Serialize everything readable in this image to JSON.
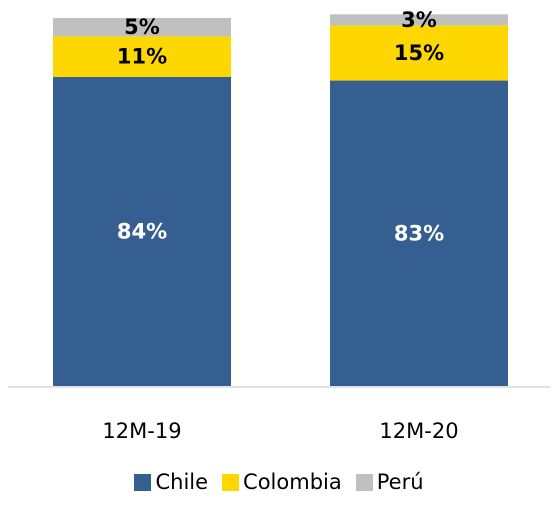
{
  "chart_data": {
    "type": "bar",
    "stacked": true,
    "categories": [
      "12M-19",
      "12M-20"
    ],
    "series": [
      {
        "name": "Chile",
        "color": "#365f91",
        "values": [
          84,
          83
        ],
        "labels": [
          "84%",
          "83%"
        ],
        "label_color": "#ffffff"
      },
      {
        "name": "Colombia",
        "color": "#ffd700",
        "values": [
          11,
          15
        ],
        "labels": [
          "11%",
          "15%"
        ],
        "label_color": "#000000"
      },
      {
        "name": "Perú",
        "color": "#c0c0c0",
        "values": [
          5,
          3
        ],
        "labels": [
          "5%",
          "3%"
        ],
        "label_color": "#000000"
      }
    ],
    "ylim": [
      0,
      100
    ],
    "title": "",
    "xlabel": "",
    "ylabel": "",
    "grid": false,
    "legend_position": "bottom"
  }
}
